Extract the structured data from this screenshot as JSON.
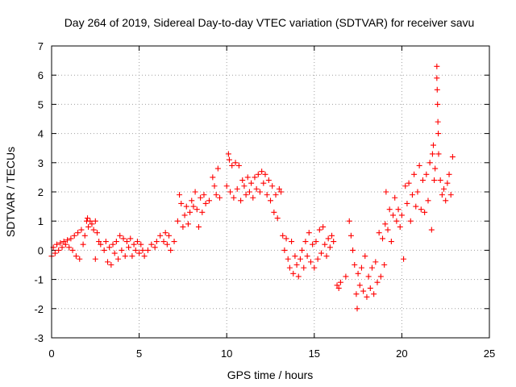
{
  "chart_data": {
    "type": "scatter",
    "title": "Day 264 of 2019, Sidereal Day-to-day VTEC variation (SDTVAR) for receiver savu",
    "xlabel": "GPS time / hours",
    "ylabel": "SDTVAR / TECUs",
    "xlim": [
      0,
      25
    ],
    "ylim": [
      -3,
      7
    ],
    "xticks": [
      "0",
      "5",
      "10",
      "15",
      "20",
      "25"
    ],
    "yticks": [
      "-3",
      "-2",
      "-1",
      "0",
      "1",
      "2",
      "3",
      "4",
      "5",
      "6",
      "7"
    ],
    "grid": true,
    "marker": "plus",
    "color": "#ff0000",
    "series": [
      {
        "name": "SDTVAR",
        "points": [
          [
            0.0,
            -0.2
          ],
          [
            0.1,
            0.1
          ],
          [
            0.2,
            -0.1
          ],
          [
            0.3,
            0.2
          ],
          [
            0.4,
            0.0
          ],
          [
            0.5,
            0.25
          ],
          [
            0.6,
            0.1
          ],
          [
            0.7,
            0.3
          ],
          [
            0.8,
            0.2
          ],
          [
            0.9,
            0.35
          ],
          [
            1.0,
            0.1
          ],
          [
            1.1,
            0.4
          ],
          [
            1.2,
            0.0
          ],
          [
            1.3,
            0.5
          ],
          [
            1.4,
            -0.2
          ],
          [
            1.5,
            0.6
          ],
          [
            1.6,
            -0.3
          ],
          [
            1.7,
            0.7
          ],
          [
            1.8,
            0.2
          ],
          [
            1.9,
            0.5
          ],
          [
            2.0,
            1.0
          ],
          [
            2.05,
            1.1
          ],
          [
            2.1,
            0.8
          ],
          [
            2.2,
            1.0
          ],
          [
            2.3,
            0.9
          ],
          [
            2.4,
            0.7
          ],
          [
            2.5,
            1.0
          ],
          [
            2.6,
            0.6
          ],
          [
            2.7,
            0.3
          ],
          [
            2.5,
            -0.3
          ],
          [
            2.8,
            0.2
          ],
          [
            3.0,
            0.0
          ],
          [
            3.1,
            0.3
          ],
          [
            3.2,
            -0.4
          ],
          [
            3.3,
            0.1
          ],
          [
            3.4,
            -0.5
          ],
          [
            3.5,
            0.2
          ],
          [
            3.6,
            -0.1
          ],
          [
            3.7,
            0.3
          ],
          [
            3.8,
            -0.3
          ],
          [
            3.9,
            0.5
          ],
          [
            4.0,
            0.0
          ],
          [
            4.1,
            0.4
          ],
          [
            4.2,
            -0.2
          ],
          [
            4.3,
            0.3
          ],
          [
            4.4,
            0.1
          ],
          [
            4.5,
            0.4
          ],
          [
            4.6,
            -0.2
          ],
          [
            4.7,
            0.2
          ],
          [
            4.8,
            0.0
          ],
          [
            4.9,
            0.3
          ],
          [
            5.0,
            -0.1
          ],
          [
            5.1,
            0.2
          ],
          [
            5.2,
            0.0
          ],
          [
            5.3,
            -0.2
          ],
          [
            5.5,
            0.0
          ],
          [
            5.7,
            0.2
          ],
          [
            5.9,
            0.1
          ],
          [
            6.0,
            0.3
          ],
          [
            6.2,
            0.5
          ],
          [
            6.4,
            0.3
          ],
          [
            6.5,
            0.6
          ],
          [
            6.6,
            0.2
          ],
          [
            6.7,
            0.5
          ],
          [
            6.8,
            0.0
          ],
          [
            7.0,
            0.3
          ],
          [
            7.2,
            1.0
          ],
          [
            7.3,
            1.9
          ],
          [
            7.4,
            1.6
          ],
          [
            7.5,
            0.8
          ],
          [
            7.6,
            1.2
          ],
          [
            7.7,
            1.5
          ],
          [
            7.8,
            0.9
          ],
          [
            7.9,
            1.3
          ],
          [
            8.0,
            1.7
          ],
          [
            8.1,
            1.5
          ],
          [
            8.2,
            2.0
          ],
          [
            8.3,
            1.4
          ],
          [
            8.4,
            0.8
          ],
          [
            8.5,
            1.8
          ],
          [
            8.6,
            1.3
          ],
          [
            8.7,
            1.9
          ],
          [
            8.8,
            1.6
          ],
          [
            9.0,
            1.7
          ],
          [
            9.2,
            2.5
          ],
          [
            9.3,
            2.2
          ],
          [
            9.4,
            1.9
          ],
          [
            9.5,
            2.8
          ],
          [
            9.6,
            1.8
          ],
          [
            10.0,
            2.2
          ],
          [
            10.1,
            3.3
          ],
          [
            10.15,
            3.1
          ],
          [
            10.2,
            2.0
          ],
          [
            10.3,
            2.9
          ],
          [
            10.4,
            1.8
          ],
          [
            10.5,
            3.0
          ],
          [
            10.6,
            2.1
          ],
          [
            10.7,
            2.9
          ],
          [
            10.8,
            1.7
          ],
          [
            10.9,
            2.4
          ],
          [
            11.0,
            2.2
          ],
          [
            11.1,
            1.9
          ],
          [
            11.2,
            2.5
          ],
          [
            11.3,
            2.0
          ],
          [
            11.4,
            2.3
          ],
          [
            11.5,
            1.8
          ],
          [
            11.6,
            2.5
          ],
          [
            11.7,
            2.1
          ],
          [
            11.8,
            2.6
          ],
          [
            11.9,
            2.0
          ],
          [
            12.0,
            2.7
          ],
          [
            12.1,
            2.3
          ],
          [
            12.2,
            2.6
          ],
          [
            12.3,
            1.9
          ],
          [
            12.4,
            2.4
          ],
          [
            12.5,
            1.7
          ],
          [
            12.6,
            2.2
          ],
          [
            12.7,
            1.3
          ],
          [
            12.8,
            1.9
          ],
          [
            12.9,
            1.1
          ],
          [
            13.0,
            2.1
          ],
          [
            13.1,
            2.0
          ],
          [
            13.2,
            0.5
          ],
          [
            13.3,
            0.0
          ],
          [
            13.4,
            0.4
          ],
          [
            13.5,
            -0.3
          ],
          [
            13.6,
            -0.6
          ],
          [
            13.7,
            0.3
          ],
          [
            13.8,
            -0.8
          ],
          [
            13.9,
            -0.2
          ],
          [
            14.0,
            -0.5
          ],
          [
            14.1,
            -0.9
          ],
          [
            14.2,
            -0.3
          ],
          [
            14.3,
            0.0
          ],
          [
            14.4,
            -0.6
          ],
          [
            14.5,
            0.3
          ],
          [
            14.6,
            -0.2
          ],
          [
            14.7,
            0.6
          ],
          [
            14.8,
            -0.4
          ],
          [
            14.9,
            0.2
          ],
          [
            15.0,
            -0.6
          ],
          [
            15.1,
            0.3
          ],
          [
            15.2,
            -0.3
          ],
          [
            15.3,
            0.7
          ],
          [
            15.4,
            -0.1
          ],
          [
            15.5,
            0.8
          ],
          [
            15.6,
            0.2
          ],
          [
            15.7,
            -0.2
          ],
          [
            15.8,
            0.4
          ],
          [
            15.9,
            0.1
          ],
          [
            16.0,
            0.5
          ],
          [
            16.1,
            0.3
          ],
          [
            16.3,
            -1.2
          ],
          [
            16.4,
            -1.3
          ],
          [
            16.5,
            -1.1
          ],
          [
            16.8,
            -0.9
          ],
          [
            17.0,
            1.0
          ],
          [
            17.1,
            0.5
          ],
          [
            17.2,
            0.0
          ],
          [
            17.3,
            -0.5
          ],
          [
            17.4,
            -1.5
          ],
          [
            17.45,
            -2.0
          ],
          [
            17.5,
            -0.8
          ],
          [
            17.6,
            -1.2
          ],
          [
            17.7,
            -0.6
          ],
          [
            17.8,
            -1.4
          ],
          [
            17.9,
            -0.2
          ],
          [
            18.0,
            -1.6
          ],
          [
            18.1,
            -0.9
          ],
          [
            18.2,
            -1.3
          ],
          [
            18.3,
            -0.6
          ],
          [
            18.4,
            -1.5
          ],
          [
            18.5,
            -0.4
          ],
          [
            18.6,
            -1.1
          ],
          [
            18.7,
            0.6
          ],
          [
            18.8,
            -0.9
          ],
          [
            18.9,
            0.4
          ],
          [
            19.0,
            -0.5
          ],
          [
            19.05,
            0.9
          ],
          [
            19.1,
            2.0
          ],
          [
            19.2,
            0.7
          ],
          [
            19.3,
            1.4
          ],
          [
            19.4,
            0.3
          ],
          [
            19.5,
            1.2
          ],
          [
            19.6,
            1.8
          ],
          [
            19.7,
            1.0
          ],
          [
            19.8,
            1.4
          ],
          [
            19.9,
            0.8
          ],
          [
            20.0,
            1.2
          ],
          [
            20.1,
            -0.3
          ],
          [
            20.2,
            2.2
          ],
          [
            20.3,
            1.6
          ],
          [
            20.4,
            2.3
          ],
          [
            20.5,
            1.0
          ],
          [
            20.6,
            1.9
          ],
          [
            20.7,
            2.6
          ],
          [
            20.8,
            1.5
          ],
          [
            20.9,
            2.0
          ],
          [
            21.0,
            2.9
          ],
          [
            21.1,
            1.4
          ],
          [
            21.2,
            2.4
          ],
          [
            21.3,
            1.3
          ],
          [
            21.4,
            2.6
          ],
          [
            21.5,
            1.7
          ],
          [
            21.6,
            3.0
          ],
          [
            21.7,
            0.7
          ],
          [
            21.75,
            3.3
          ],
          [
            21.8,
            3.6
          ],
          [
            21.85,
            2.4
          ],
          [
            21.9,
            2.8
          ],
          [
            22.0,
            6.3
          ],
          [
            22.0,
            5.9
          ],
          [
            22.02,
            5.5
          ],
          [
            22.04,
            5.0
          ],
          [
            22.06,
            4.4
          ],
          [
            22.08,
            4.0
          ],
          [
            22.1,
            3.3
          ],
          [
            22.2,
            2.4
          ],
          [
            22.3,
            1.9
          ],
          [
            22.4,
            2.1
          ],
          [
            22.5,
            1.7
          ],
          [
            22.6,
            2.3
          ],
          [
            22.7,
            2.6
          ],
          [
            22.8,
            1.9
          ],
          [
            22.9,
            3.2
          ]
        ]
      }
    ]
  }
}
